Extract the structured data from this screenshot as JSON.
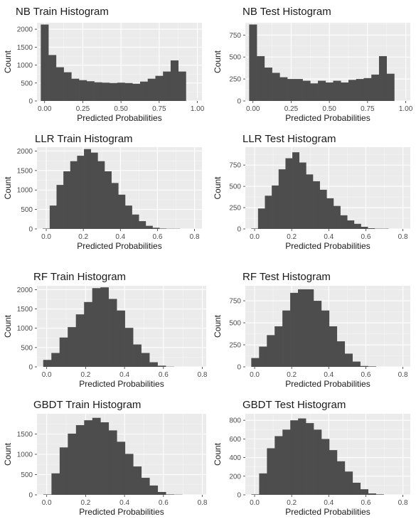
{
  "colors": {
    "panel_background": "#ebebeb",
    "bar_fill": "#4d4d4d",
    "grid": "#ffffff"
  },
  "chart_data": [
    {
      "type": "histogram",
      "title": "NB Train Histogram",
      "xlabel": "Predicted Probabilities",
      "ylabel": "Count",
      "xlim": [
        -0.05,
        1.03
      ],
      "ylim": [
        0,
        2180
      ],
      "bin_start": -0.025,
      "bin_width": 0.05,
      "counts": [
        2130,
        1280,
        940,
        800,
        620,
        580,
        550,
        520,
        510,
        500,
        510,
        500,
        480,
        540,
        620,
        700,
        820,
        1130,
        820
      ],
      "xticks": [
        "0.00",
        "0.25",
        "0.50",
        "0.75",
        "1.00"
      ],
      "xtick_values": [
        0,
        0.25,
        0.5,
        0.75,
        1.0
      ],
      "yticks": [
        "0",
        "500",
        "1000",
        "1500",
        "2000"
      ],
      "ytick_values": [
        0,
        500,
        1000,
        1500,
        2000
      ]
    },
    {
      "type": "histogram",
      "title": "NB Test Histogram",
      "xlabel": "Predicted Probabilities",
      "ylabel": "Count",
      "xlim": [
        -0.05,
        1.03
      ],
      "ylim": [
        0,
        890
      ],
      "bin_start": -0.025,
      "bin_width": 0.05,
      "counts": [
        870,
        510,
        380,
        320,
        270,
        250,
        250,
        230,
        200,
        230,
        210,
        230,
        210,
        240,
        250,
        260,
        300,
        510,
        310
      ],
      "xticks": [
        "0.00",
        "0.25",
        "0.50",
        "0.75",
        "1.00"
      ],
      "xtick_values": [
        0,
        0.25,
        0.5,
        0.75,
        1.0
      ],
      "yticks": [
        "0",
        "250",
        "500",
        "750"
      ],
      "ytick_values": [
        0,
        250,
        500,
        750
      ]
    },
    {
      "type": "histogram",
      "title": "LLR Train Histogram",
      "xlabel": "Predicted Probabilities",
      "ylabel": "Count",
      "xlim": [
        -0.05,
        0.84
      ],
      "ylim": [
        0,
        2100
      ],
      "bin_start": -0.0185,
      "bin_width": 0.037,
      "counts": [
        10,
        600,
        1130,
        1480,
        1740,
        1880,
        2050,
        1960,
        1740,
        1480,
        1180,
        880,
        600,
        370,
        200,
        80,
        30,
        10,
        5,
        5
      ],
      "xticks": [
        "0.0",
        "0.2",
        "0.4",
        "0.6",
        "0.8"
      ],
      "xtick_values": [
        0,
        0.2,
        0.4,
        0.6,
        0.8
      ],
      "yticks": [
        "0",
        "500",
        "1000",
        "1500",
        "2000"
      ],
      "ytick_values": [
        0,
        500,
        1000,
        1500,
        2000
      ]
    },
    {
      "type": "histogram",
      "title": "LLR Test Histogram",
      "xlabel": "Predicted Probabilities",
      "ylabel": "Count",
      "xlim": [
        -0.05,
        0.84
      ],
      "ylim": [
        0,
        960
      ],
      "bin_start": -0.0185,
      "bin_width": 0.037,
      "counts": [
        5,
        240,
        390,
        510,
        700,
        830,
        900,
        780,
        640,
        560,
        460,
        360,
        270,
        160,
        100,
        60,
        25,
        8,
        3,
        3
      ],
      "xticks": [
        "0.0",
        "0.2",
        "0.4",
        "0.6",
        "0.8"
      ],
      "xtick_values": [
        0,
        0.2,
        0.4,
        0.6,
        0.8
      ],
      "yticks": [
        "0",
        "250",
        "500",
        "750"
      ],
      "ytick_values": [
        0,
        250,
        500,
        750
      ]
    },
    {
      "type": "histogram",
      "title": "RF Train Histogram",
      "xlabel": "Predicted Probabilities",
      "ylabel": "Count",
      "xlim": [
        -0.05,
        0.82
      ],
      "ylim": [
        0,
        2100
      ],
      "bin_start": -0.018,
      "bin_width": 0.042,
      "counts": [
        180,
        360,
        760,
        1030,
        1360,
        1680,
        2040,
        2060,
        1760,
        1460,
        1010,
        580,
        360,
        120,
        30,
        5
      ],
      "xticks": [
        "0.0",
        "0.2",
        "0.4",
        "0.6",
        "0.8"
      ],
      "xtick_values": [
        0,
        0.2,
        0.4,
        0.6,
        0.8
      ],
      "yticks": [
        "0",
        "500",
        "1000",
        "1500",
        "2000"
      ],
      "ytick_values": [
        0,
        500,
        1000,
        1500,
        2000
      ]
    },
    {
      "type": "histogram",
      "title": "RF Test Histogram",
      "xlabel": "Predicted Probabilities",
      "ylabel": "Count",
      "xlim": [
        -0.05,
        0.84
      ],
      "ylim": [
        0,
        920
      ],
      "bin_start": -0.018,
      "bin_width": 0.042,
      "counts": [
        100,
        230,
        360,
        460,
        640,
        840,
        880,
        880,
        750,
        640,
        460,
        290,
        150,
        60,
        10,
        5
      ],
      "xticks": [
        "0.0",
        "0.2",
        "0.4",
        "0.6",
        "0.8"
      ],
      "xtick_values": [
        0,
        0.2,
        0.4,
        0.6,
        0.8
      ],
      "yticks": [
        "0",
        "250",
        "500",
        "750"
      ],
      "ytick_values": [
        0,
        250,
        500,
        750
      ]
    },
    {
      "type": "histogram",
      "title": "GBDT Train Histogram",
      "xlabel": "Predicted Probabilities",
      "ylabel": "Count",
      "xlim": [
        -0.05,
        0.82
      ],
      "ylim": [
        0,
        2000
      ],
      "bin_start": -0.0175,
      "bin_width": 0.042,
      "counts": [
        10,
        530,
        1170,
        1510,
        1720,
        1840,
        1900,
        1790,
        1590,
        1310,
        1010,
        700,
        420,
        230,
        70,
        10,
        5
      ],
      "xticks": [
        "0.0",
        "0.2",
        "0.4",
        "0.6",
        "0.8"
      ],
      "xtick_values": [
        0,
        0.2,
        0.4,
        0.6,
        0.8
      ],
      "yticks": [
        "0",
        "500",
        "1000",
        "1500"
      ],
      "ytick_values": [
        0,
        500,
        1000,
        1500
      ]
    },
    {
      "type": "histogram",
      "title": "GBDT Test Histogram",
      "xlabel": "Predicted Probabilities",
      "ylabel": "Count",
      "xlim": [
        -0.05,
        0.84
      ],
      "ylim": [
        0,
        870
      ],
      "bin_start": -0.0175,
      "bin_width": 0.042,
      "counts": [
        5,
        230,
        500,
        630,
        700,
        800,
        820,
        770,
        700,
        600,
        480,
        360,
        250,
        130,
        60,
        15,
        5
      ],
      "xticks": [
        "0.0",
        "0.2",
        "0.4",
        "0.6",
        "0.8"
      ],
      "xtick_values": [
        0,
        0.2,
        0.4,
        0.6,
        0.8
      ],
      "yticks": [
        "0",
        "200",
        "400",
        "600",
        "800"
      ],
      "ytick_values": [
        0,
        200,
        400,
        600,
        800
      ]
    }
  ]
}
